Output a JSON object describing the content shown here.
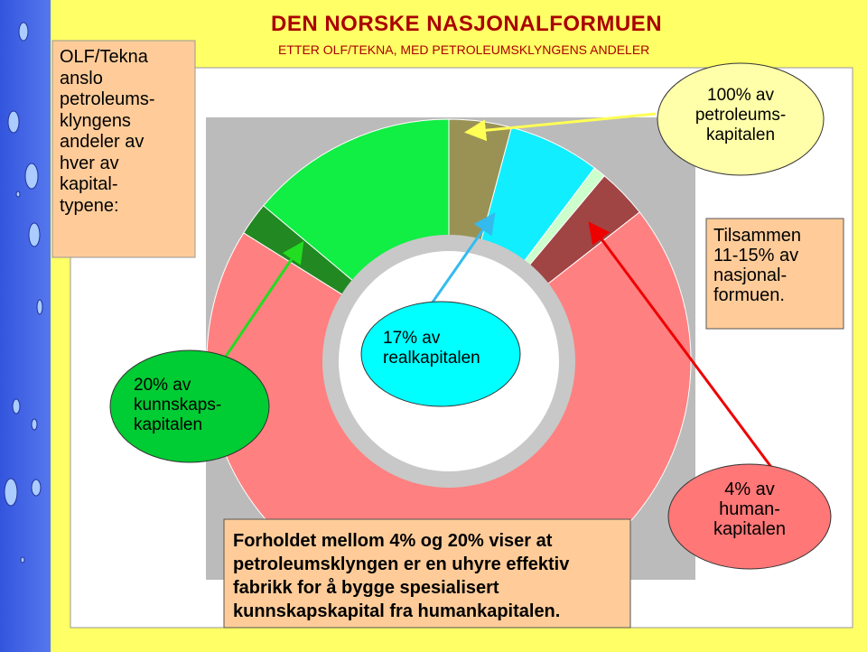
{
  "title": "DEN NORSKE NASJONALFORMUEN",
  "subtitle": "ETTER OLF/TEKNA, MED PETROLEUMSKLYNGENS ANDELER",
  "intro": [
    "OLF/Tekna",
    "anslo",
    "petroleums-",
    "klyngens",
    "andeler av",
    "hver av",
    "kapital-",
    "typene:"
  ],
  "callouts": {
    "petroleum": [
      "100% av",
      "petroleums-",
      "kapitalen"
    ],
    "total": [
      "Tilsammen",
      "11-15% av",
      "nasjonal-",
      "formuen."
    ],
    "real": [
      "17% av",
      "realkapitalen"
    ],
    "knowledge": [
      "20% av",
      "kunnskaps-",
      "kapitalen"
    ],
    "human": [
      "4% av",
      "human-",
      "kapitalen"
    ]
  },
  "conclusion": [
    "Forholdet mellom 4% og 20% viser at",
    "petroleumsklyngen er en uhyre effektiv",
    "fabrikk for å bygge spesialisert",
    "kunnskapskapital fra humankapitalen."
  ]
}
